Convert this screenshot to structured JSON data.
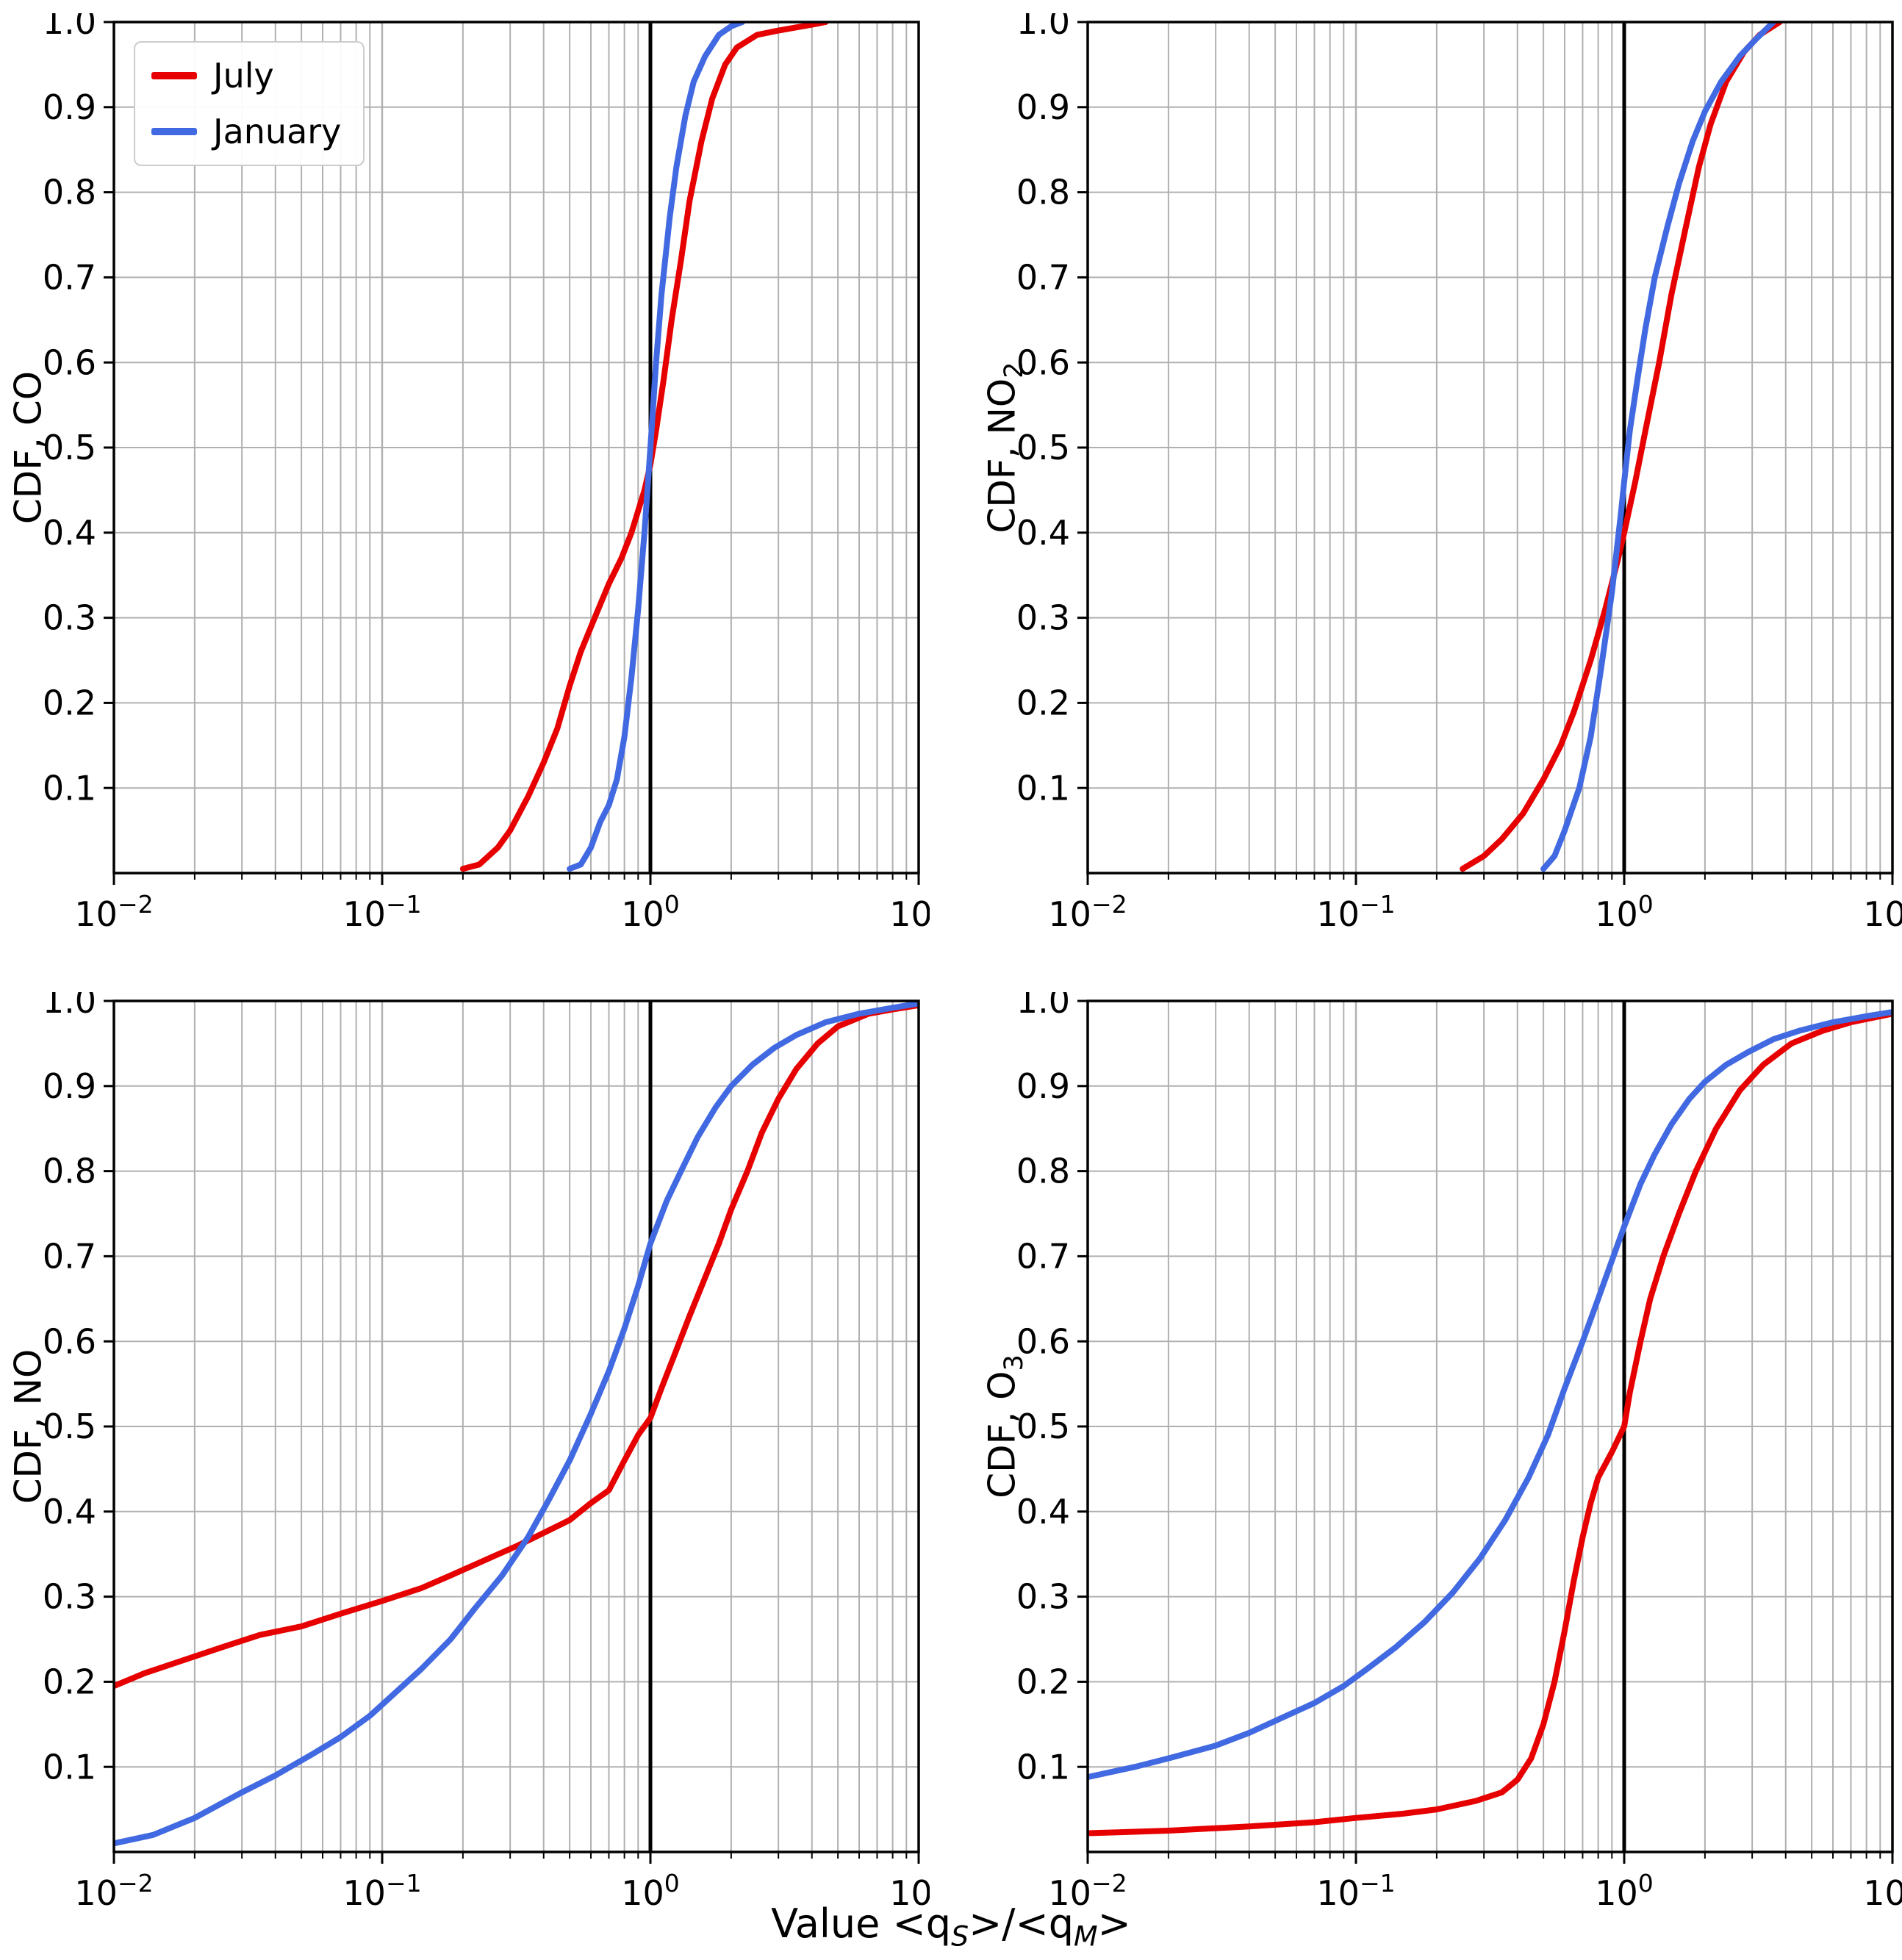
{
  "figure": {
    "xlabel": {
      "pre": "Value <q",
      "sub_s": "S",
      "mid": ">/<q",
      "sub_m": "M",
      "post": ">"
    }
  },
  "legend": {
    "items": [
      {
        "label": "July",
        "color": "#e60000"
      },
      {
        "label": "January",
        "color": "#4169e1"
      }
    ]
  },
  "axes": {
    "yticks": [
      0.1,
      0.2,
      0.3,
      0.4,
      0.5,
      0.6,
      0.7,
      0.8,
      0.9,
      1.0
    ],
    "xtick_exponents": [
      -2,
      -1,
      0,
      1
    ],
    "grid_color": "#b0b0b0",
    "reference_line_color": "#000000"
  },
  "chart_data": [
    {
      "id": "co",
      "type": "line",
      "x_scale": "log",
      "ylabel_main": "CDF, CO",
      "ylabel_sub": "",
      "xlim": [
        0.01,
        10
      ],
      "ylim": [
        0,
        1
      ],
      "reference_line_x": 1,
      "series": [
        {
          "name": "July",
          "color": "#e60000",
          "points": [
            [
              0.2,
              0.005
            ],
            [
              0.23,
              0.01
            ],
            [
              0.27,
              0.03
            ],
            [
              0.3,
              0.05
            ],
            [
              0.35,
              0.09
            ],
            [
              0.4,
              0.13
            ],
            [
              0.45,
              0.17
            ],
            [
              0.5,
              0.22
            ],
            [
              0.55,
              0.26
            ],
            [
              0.62,
              0.3
            ],
            [
              0.7,
              0.34
            ],
            [
              0.78,
              0.37
            ],
            [
              0.85,
              0.4
            ],
            [
              0.95,
              0.45
            ],
            [
              1.0,
              0.48
            ],
            [
              1.05,
              0.52
            ],
            [
              1.12,
              0.58
            ],
            [
              1.2,
              0.65
            ],
            [
              1.3,
              0.72
            ],
            [
              1.4,
              0.79
            ],
            [
              1.55,
              0.86
            ],
            [
              1.7,
              0.91
            ],
            [
              1.9,
              0.95
            ],
            [
              2.1,
              0.97
            ],
            [
              2.5,
              0.985
            ],
            [
              3.0,
              0.99
            ],
            [
              4.0,
              0.997
            ],
            [
              4.5,
              1.0
            ]
          ]
        },
        {
          "name": "January",
          "color": "#4169e1",
          "points": [
            [
              0.5,
              0.005
            ],
            [
              0.55,
              0.01
            ],
            [
              0.6,
              0.03
            ],
            [
              0.65,
              0.06
            ],
            [
              0.7,
              0.08
            ],
            [
              0.75,
              0.11
            ],
            [
              0.8,
              0.16
            ],
            [
              0.85,
              0.23
            ],
            [
              0.9,
              0.31
            ],
            [
              0.95,
              0.4
            ],
            [
              1.0,
              0.5
            ],
            [
              1.05,
              0.6
            ],
            [
              1.1,
              0.68
            ],
            [
              1.18,
              0.77
            ],
            [
              1.25,
              0.83
            ],
            [
              1.35,
              0.89
            ],
            [
              1.45,
              0.93
            ],
            [
              1.6,
              0.96
            ],
            [
              1.8,
              0.985
            ],
            [
              2.0,
              0.995
            ],
            [
              2.2,
              1.0
            ]
          ]
        }
      ]
    },
    {
      "id": "no2",
      "type": "line",
      "x_scale": "log",
      "ylabel_main": "CDF, NO",
      "ylabel_sub": "2",
      "xlim": [
        0.01,
        10
      ],
      "ylim": [
        0,
        1
      ],
      "reference_line_x": 1,
      "series": [
        {
          "name": "July",
          "color": "#e60000",
          "points": [
            [
              0.25,
              0.005
            ],
            [
              0.3,
              0.02
            ],
            [
              0.35,
              0.04
            ],
            [
              0.42,
              0.07
            ],
            [
              0.5,
              0.11
            ],
            [
              0.58,
              0.15
            ],
            [
              0.65,
              0.19
            ],
            [
              0.75,
              0.25
            ],
            [
              0.85,
              0.31
            ],
            [
              0.95,
              0.37
            ],
            [
              1.0,
              0.4
            ],
            [
              1.1,
              0.46
            ],
            [
              1.2,
              0.52
            ],
            [
              1.35,
              0.6
            ],
            [
              1.5,
              0.68
            ],
            [
              1.7,
              0.76
            ],
            [
              1.9,
              0.83
            ],
            [
              2.1,
              0.88
            ],
            [
              2.4,
              0.93
            ],
            [
              2.8,
              0.965
            ],
            [
              3.2,
              0.985
            ],
            [
              3.8,
              1.0
            ]
          ]
        },
        {
          "name": "January",
          "color": "#4169e1",
          "points": [
            [
              0.5,
              0.005
            ],
            [
              0.55,
              0.02
            ],
            [
              0.6,
              0.05
            ],
            [
              0.68,
              0.1
            ],
            [
              0.75,
              0.16
            ],
            [
              0.82,
              0.24
            ],
            [
              0.9,
              0.33
            ],
            [
              0.97,
              0.42
            ],
            [
              1.0,
              0.46
            ],
            [
              1.05,
              0.52
            ],
            [
              1.12,
              0.58
            ],
            [
              1.2,
              0.64
            ],
            [
              1.3,
              0.7
            ],
            [
              1.45,
              0.76
            ],
            [
              1.6,
              0.81
            ],
            [
              1.8,
              0.86
            ],
            [
              2.0,
              0.895
            ],
            [
              2.3,
              0.93
            ],
            [
              2.7,
              0.96
            ],
            [
              3.1,
              0.98
            ],
            [
              3.6,
              1.0
            ]
          ]
        }
      ]
    },
    {
      "id": "no",
      "type": "line",
      "x_scale": "log",
      "ylabel_main": "CDF, NO",
      "ylabel_sub": "",
      "xlim": [
        0.01,
        10
      ],
      "ylim": [
        0,
        1
      ],
      "reference_line_x": 1,
      "series": [
        {
          "name": "July",
          "color": "#e60000",
          "points": [
            [
              0.01,
              0.195
            ],
            [
              0.013,
              0.21
            ],
            [
              0.018,
              0.225
            ],
            [
              0.025,
              0.24
            ],
            [
              0.035,
              0.255
            ],
            [
              0.05,
              0.265
            ],
            [
              0.07,
              0.28
            ],
            [
              0.1,
              0.295
            ],
            [
              0.14,
              0.31
            ],
            [
              0.18,
              0.325
            ],
            [
              0.25,
              0.345
            ],
            [
              0.32,
              0.36
            ],
            [
              0.4,
              0.375
            ],
            [
              0.5,
              0.39
            ],
            [
              0.6,
              0.41
            ],
            [
              0.7,
              0.425
            ],
            [
              0.8,
              0.46
            ],
            [
              0.9,
              0.49
            ],
            [
              1.0,
              0.51
            ],
            [
              1.1,
              0.545
            ],
            [
              1.25,
              0.59
            ],
            [
              1.4,
              0.63
            ],
            [
              1.6,
              0.675
            ],
            [
              1.8,
              0.715
            ],
            [
              2.0,
              0.755
            ],
            [
              2.3,
              0.8
            ],
            [
              2.6,
              0.845
            ],
            [
              3.0,
              0.885
            ],
            [
              3.5,
              0.92
            ],
            [
              4.2,
              0.95
            ],
            [
              5.0,
              0.97
            ],
            [
              6.5,
              0.985
            ],
            [
              8.0,
              0.99
            ],
            [
              10,
              0.995
            ]
          ]
        },
        {
          "name": "January",
          "color": "#4169e1",
          "points": [
            [
              0.01,
              0.01
            ],
            [
              0.014,
              0.02
            ],
            [
              0.02,
              0.04
            ],
            [
              0.03,
              0.07
            ],
            [
              0.04,
              0.09
            ],
            [
              0.055,
              0.115
            ],
            [
              0.07,
              0.135
            ],
            [
              0.09,
              0.16
            ],
            [
              0.11,
              0.185
            ],
            [
              0.14,
              0.215
            ],
            [
              0.18,
              0.25
            ],
            [
              0.22,
              0.285
            ],
            [
              0.28,
              0.325
            ],
            [
              0.35,
              0.37
            ],
            [
              0.42,
              0.415
            ],
            [
              0.5,
              0.46
            ],
            [
              0.6,
              0.515
            ],
            [
              0.7,
              0.565
            ],
            [
              0.8,
              0.615
            ],
            [
              0.9,
              0.665
            ],
            [
              1.0,
              0.715
            ],
            [
              1.15,
              0.765
            ],
            [
              1.3,
              0.8
            ],
            [
              1.5,
              0.84
            ],
            [
              1.75,
              0.875
            ],
            [
              2.0,
              0.9
            ],
            [
              2.4,
              0.925
            ],
            [
              2.9,
              0.945
            ],
            [
              3.5,
              0.96
            ],
            [
              4.5,
              0.975
            ],
            [
              6.0,
              0.985
            ],
            [
              8.0,
              0.992
            ],
            [
              10,
              0.997
            ]
          ]
        }
      ]
    },
    {
      "id": "o3",
      "type": "line",
      "x_scale": "log",
      "ylabel_main": "CDF, O",
      "ylabel_sub": "3",
      "xlim": [
        0.01,
        10
      ],
      "ylim": [
        0,
        1
      ],
      "reference_line_x": 1,
      "series": [
        {
          "name": "July",
          "color": "#e60000",
          "points": [
            [
              0.01,
              0.022
            ],
            [
              0.02,
              0.025
            ],
            [
              0.04,
              0.03
            ],
            [
              0.07,
              0.035
            ],
            [
              0.1,
              0.04
            ],
            [
              0.15,
              0.045
            ],
            [
              0.2,
              0.05
            ],
            [
              0.28,
              0.06
            ],
            [
              0.35,
              0.07
            ],
            [
              0.4,
              0.085
            ],
            [
              0.45,
              0.11
            ],
            [
              0.5,
              0.15
            ],
            [
              0.55,
              0.2
            ],
            [
              0.6,
              0.26
            ],
            [
              0.65,
              0.32
            ],
            [
              0.7,
              0.37
            ],
            [
              0.75,
              0.41
            ],
            [
              0.8,
              0.44
            ],
            [
              0.9,
              0.47
            ],
            [
              1.0,
              0.5
            ],
            [
              1.05,
              0.54
            ],
            [
              1.15,
              0.6
            ],
            [
              1.25,
              0.65
            ],
            [
              1.4,
              0.7
            ],
            [
              1.6,
              0.75
            ],
            [
              1.85,
              0.8
            ],
            [
              2.2,
              0.85
            ],
            [
              2.7,
              0.895
            ],
            [
              3.3,
              0.925
            ],
            [
              4.2,
              0.95
            ],
            [
              5.5,
              0.965
            ],
            [
              7.0,
              0.975
            ],
            [
              9.0,
              0.982
            ],
            [
              10,
              0.985
            ]
          ]
        },
        {
          "name": "January",
          "color": "#4169e1",
          "points": [
            [
              0.01,
              0.088
            ],
            [
              0.015,
              0.1
            ],
            [
              0.02,
              0.11
            ],
            [
              0.03,
              0.125
            ],
            [
              0.04,
              0.14
            ],
            [
              0.055,
              0.16
            ],
            [
              0.07,
              0.175
            ],
            [
              0.09,
              0.195
            ],
            [
              0.11,
              0.215
            ],
            [
              0.14,
              0.24
            ],
            [
              0.18,
              0.27
            ],
            [
              0.23,
              0.305
            ],
            [
              0.29,
              0.345
            ],
            [
              0.36,
              0.39
            ],
            [
              0.44,
              0.44
            ],
            [
              0.52,
              0.49
            ],
            [
              0.6,
              0.545
            ],
            [
              0.7,
              0.6
            ],
            [
              0.8,
              0.65
            ],
            [
              0.9,
              0.695
            ],
            [
              1.0,
              0.735
            ],
            [
              1.15,
              0.785
            ],
            [
              1.3,
              0.82
            ],
            [
              1.5,
              0.855
            ],
            [
              1.75,
              0.885
            ],
            [
              2.0,
              0.905
            ],
            [
              2.4,
              0.925
            ],
            [
              2.9,
              0.94
            ],
            [
              3.6,
              0.955
            ],
            [
              4.5,
              0.965
            ],
            [
              6.0,
              0.975
            ],
            [
              8.0,
              0.982
            ],
            [
              10,
              0.987
            ]
          ]
        }
      ]
    }
  ]
}
